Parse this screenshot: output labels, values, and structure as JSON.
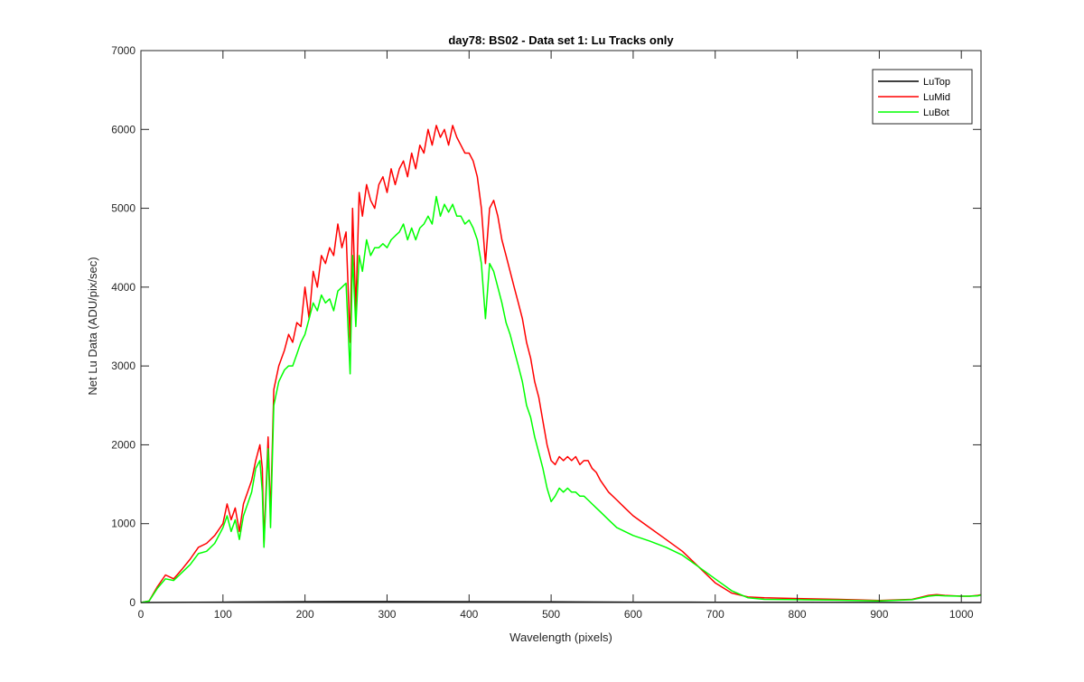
{
  "chart_data": {
    "type": "line",
    "title": "day78: BS02 - Data set 1: Lu Tracks only",
    "xlabel": "Wavelength (pixels)",
    "ylabel": "Net Lu Data (ADU/pix/sec)",
    "xlim": [
      0,
      1024
    ],
    "ylim": [
      0,
      7000
    ],
    "xticks": [
      0,
      100,
      200,
      300,
      400,
      500,
      600,
      700,
      800,
      900,
      1000
    ],
    "yticks": [
      0,
      1000,
      2000,
      3000,
      4000,
      5000,
      6000,
      7000
    ],
    "grid": false,
    "legend_position": "top-right",
    "series": [
      {
        "name": "LuTop",
        "color": "#000000",
        "x": [
          0,
          100,
          200,
          300,
          400,
          500,
          600,
          700,
          800,
          900,
          1024
        ],
        "y": [
          0,
          5,
          10,
          12,
          10,
          8,
          5,
          3,
          2,
          1,
          0
        ]
      },
      {
        "name": "LuMid",
        "color": "#ff0000",
        "x": [
          0,
          10,
          20,
          30,
          40,
          50,
          60,
          70,
          80,
          90,
          100,
          105,
          110,
          115,
          120,
          125,
          130,
          135,
          140,
          145,
          148,
          150,
          155,
          158,
          162,
          168,
          175,
          180,
          185,
          190,
          195,
          200,
          205,
          210,
          215,
          220,
          225,
          230,
          235,
          240,
          245,
          250,
          255,
          258,
          262,
          266,
          270,
          275,
          280,
          285,
          290,
          295,
          300,
          305,
          310,
          315,
          320,
          325,
          330,
          335,
          340,
          345,
          350,
          355,
          360,
          365,
          370,
          375,
          380,
          385,
          390,
          395,
          400,
          405,
          410,
          415,
          420,
          425,
          430,
          435,
          440,
          445,
          450,
          455,
          460,
          465,
          470,
          475,
          480,
          485,
          490,
          495,
          500,
          505,
          510,
          515,
          520,
          525,
          530,
          535,
          540,
          545,
          550,
          555,
          560,
          570,
          580,
          590,
          600,
          620,
          640,
          660,
          680,
          700,
          720,
          740,
          760,
          800,
          850,
          900,
          940,
          960,
          970,
          980,
          1000,
          1010,
          1020,
          1024
        ],
        "y": [
          0,
          20,
          200,
          350,
          300,
          420,
          550,
          700,
          750,
          850,
          1000,
          1250,
          1050,
          1200,
          900,
          1250,
          1400,
          1550,
          1800,
          2000,
          1700,
          750,
          2100,
          1100,
          2700,
          3000,
          3200,
          3400,
          3300,
          3550,
          3500,
          4000,
          3600,
          4200,
          4000,
          4400,
          4300,
          4500,
          4400,
          4800,
          4500,
          4700,
          3300,
          5000,
          3700,
          5200,
          4900,
          5300,
          5100,
          5000,
          5300,
          5400,
          5200,
          5500,
          5300,
          5500,
          5600,
          5400,
          5700,
          5500,
          5800,
          5700,
          6000,
          5800,
          6050,
          5900,
          6000,
          5800,
          6050,
          5900,
          5800,
          5700,
          5700,
          5600,
          5400,
          5000,
          4300,
          5000,
          5100,
          4900,
          4600,
          4400,
          4200,
          4000,
          3800,
          3600,
          3300,
          3100,
          2800,
          2600,
          2300,
          2000,
          1800,
          1750,
          1850,
          1800,
          1850,
          1800,
          1850,
          1750,
          1800,
          1800,
          1700,
          1650,
          1550,
          1400,
          1300,
          1200,
          1100,
          950,
          800,
          650,
          450,
          250,
          120,
          70,
          60,
          50,
          40,
          25,
          40,
          90,
          100,
          90,
          80,
          80,
          90,
          100
        ]
      },
      {
        "name": "LuBot",
        "color": "#00ff00",
        "x": [
          0,
          10,
          20,
          30,
          40,
          50,
          60,
          70,
          80,
          90,
          100,
          105,
          110,
          115,
          120,
          125,
          130,
          135,
          140,
          145,
          148,
          150,
          155,
          158,
          162,
          168,
          175,
          180,
          185,
          190,
          195,
          200,
          205,
          210,
          215,
          220,
          225,
          230,
          235,
          240,
          245,
          250,
          255,
          258,
          262,
          266,
          270,
          275,
          280,
          285,
          290,
          295,
          300,
          305,
          310,
          315,
          320,
          325,
          330,
          335,
          340,
          345,
          350,
          355,
          360,
          365,
          370,
          375,
          380,
          385,
          390,
          395,
          400,
          405,
          410,
          415,
          420,
          425,
          430,
          435,
          440,
          445,
          450,
          455,
          460,
          465,
          470,
          475,
          480,
          485,
          490,
          495,
          500,
          505,
          510,
          515,
          520,
          525,
          530,
          535,
          540,
          545,
          550,
          555,
          560,
          570,
          580,
          590,
          600,
          620,
          640,
          660,
          680,
          700,
          720,
          740,
          760,
          800,
          850,
          900,
          940,
          960,
          970,
          980,
          1000,
          1010,
          1020,
          1024
        ],
        "y": [
          0,
          20,
          180,
          300,
          280,
          380,
          480,
          620,
          650,
          750,
          950,
          1100,
          900,
          1050,
          800,
          1100,
          1250,
          1400,
          1700,
          1800,
          1400,
          700,
          1950,
          950,
          2500,
          2800,
          2950,
          3000,
          3000,
          3150,
          3300,
          3400,
          3600,
          3800,
          3700,
          3900,
          3800,
          3850,
          3700,
          3950,
          4000,
          4050,
          2900,
          4400,
          3500,
          4400,
          4200,
          4600,
          4400,
          4500,
          4500,
          4550,
          4500,
          4600,
          4650,
          4700,
          4800,
          4600,
          4750,
          4600,
          4750,
          4800,
          4900,
          4800,
          5150,
          4900,
          5050,
          4950,
          5050,
          4900,
          4900,
          4800,
          4850,
          4750,
          4600,
          4300,
          3600,
          4300,
          4200,
          4000,
          3800,
          3550,
          3400,
          3200,
          3000,
          2800,
          2500,
          2350,
          2100,
          1900,
          1700,
          1450,
          1280,
          1350,
          1450,
          1400,
          1450,
          1400,
          1400,
          1350,
          1350,
          1300,
          1250,
          1200,
          1150,
          1050,
          950,
          900,
          850,
          780,
          700,
          600,
          450,
          300,
          150,
          60,
          40,
          35,
          30,
          20,
          35,
          80,
          90,
          85,
          80,
          80,
          85,
          95
        ]
      }
    ]
  }
}
